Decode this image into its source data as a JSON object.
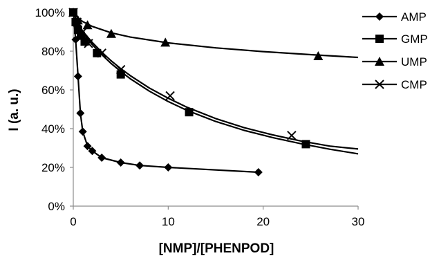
{
  "chart_data": {
    "type": "scatter",
    "title": "",
    "xlabel": "[NMP]/[PHENPOD]",
    "ylabel": "I (a. u.)",
    "xlim": [
      0,
      30
    ],
    "ylim": [
      0,
      100
    ],
    "x_ticks": [
      "0",
      "10",
      "20",
      "30"
    ],
    "y_ticks": [
      "0%",
      "20%",
      "40%",
      "60%",
      "80%",
      "100%"
    ],
    "y_unit": "%",
    "grid": false,
    "legend_position": "right",
    "series": [
      {
        "name": "AMP",
        "marker": "diamond",
        "x": [
          0,
          0.25,
          0.5,
          0.75,
          1.0,
          1.5,
          2.0,
          3.0,
          5.0,
          7.0,
          10.0,
          19.5
        ],
        "y": [
          100,
          86,
          67,
          48,
          38.5,
          31,
          28.5,
          25,
          22.5,
          21,
          20,
          17.5
        ],
        "fit_y": [
          100,
          86,
          67,
          48,
          38.5,
          31,
          28.5,
          25,
          22.5,
          21,
          20,
          17.5
        ]
      },
      {
        "name": "GMP",
        "marker": "square",
        "x": [
          0,
          0.25,
          0.5,
          0.8,
          1.2,
          2.5,
          5.0,
          12.2,
          24.5
        ],
        "y": [
          100,
          95,
          91,
          88,
          85,
          79,
          68,
          48.5,
          32
        ],
        "fit_x": [
          0,
          0.5,
          1,
          2,
          3,
          4,
          5,
          6,
          8,
          10,
          12,
          15,
          18,
          21,
          24,
          27,
          30
        ],
        "fit_y": [
          100,
          93.8,
          89.4,
          83.4,
          78.2,
          73.6,
          69.5,
          65.8,
          59.4,
          54,
          49.4,
          43.7,
          39.1,
          35.4,
          32.2,
          29.4,
          27
        ]
      },
      {
        "name": "UMP",
        "marker": "triangle",
        "x": [
          0,
          0.5,
          1.5,
          4.0,
          9.7,
          25.8
        ],
        "y": [
          100,
          96,
          93.5,
          89,
          84.5,
          77.5
        ],
        "fit_x": [
          0,
          0.5,
          1,
          2,
          4,
          6,
          10,
          15,
          20,
          25,
          30
        ],
        "fit_y": [
          100,
          97,
          95.3,
          92.8,
          89.5,
          87.3,
          84.3,
          81.7,
          79.8,
          78.2,
          76.8
        ]
      },
      {
        "name": "CMP",
        "marker": "x",
        "x": [
          0,
          0.4,
          1.0,
          1.6,
          3.0,
          5.0,
          10.2,
          23.0
        ],
        "y": [
          100,
          95,
          90,
          84,
          79,
          70.5,
          57,
          36.5
        ],
        "fit_x": [
          0,
          0.5,
          1,
          2,
          3,
          4,
          5,
          6,
          8,
          10,
          12,
          15,
          18,
          21,
          24,
          27,
          30
        ],
        "fit_y": [
          100,
          94.2,
          90.3,
          84.5,
          79.5,
          75,
          71,
          67.4,
          61,
          55.7,
          51,
          45.2,
          40.5,
          36.8,
          33.6,
          31,
          29.5
        ]
      }
    ]
  },
  "legend": {
    "items": [
      "AMP",
      "GMP",
      "UMP",
      "CMP"
    ]
  }
}
